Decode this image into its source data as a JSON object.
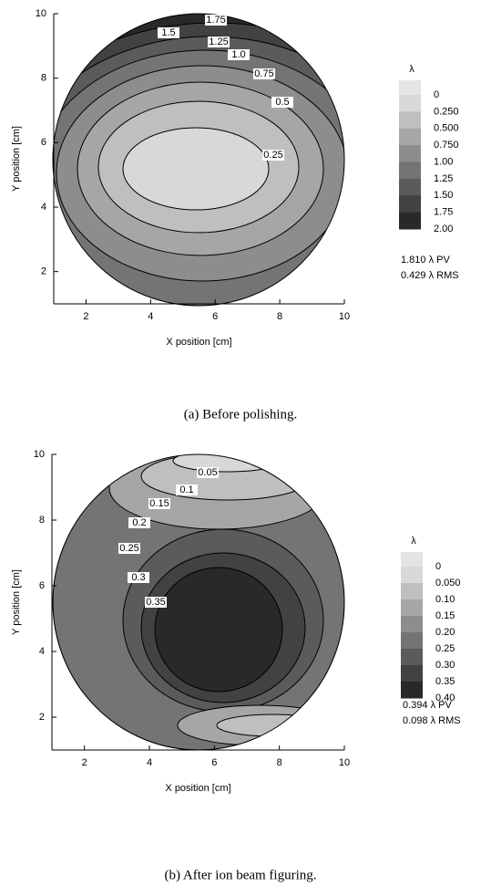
{
  "chart_data": [
    {
      "type": "contour",
      "caption": "(a) Before polishing.",
      "x_label": "X position [cm]",
      "y_label": "Y position [cm]",
      "xlim": [
        1,
        10
      ],
      "ylim": [
        1,
        10
      ],
      "xticks": [
        2,
        4,
        6,
        8,
        10
      ],
      "yticks": [
        2,
        4,
        6,
        8,
        10
      ],
      "levels": [
        1.75,
        1.5,
        1.25,
        {
          "value": 1,
          "label": "1.0"
        },
        0.75,
        0.5,
        0.25
      ],
      "colorbar_label": "λ",
      "clim": [
        0,
        2
      ],
      "colorbar_ticks": [
        0,
        {
          "value": 0.25,
          "label": "0.250"
        },
        {
          "value": 0.5,
          "label": "0.500"
        },
        {
          "value": 0.75,
          "label": "0.750"
        },
        {
          "value": 1,
          "label": "1.00"
        },
        1.25,
        {
          "value": 1.5,
          "label": "1.50"
        },
        1.75,
        {
          "value": 2,
          "label": "2.00"
        }
      ],
      "annotations": [
        "1.810 λ PV",
        "0.429 λ RMS"
      ]
    },
    {
      "type": "contour",
      "caption": "(b) After ion beam figuring.",
      "x_label": "X position [cm]",
      "y_label": "Y position [cm]",
      "xlim": [
        1,
        10
      ],
      "ylim": [
        1,
        10
      ],
      "xticks": [
        2,
        4,
        6,
        8,
        10
      ],
      "yticks": [
        2,
        4,
        6,
        8,
        10
      ],
      "levels": [
        0.05,
        0.1,
        0.15,
        0.2,
        0.25,
        0.3,
        0.35
      ],
      "colorbar_label": "λ",
      "clim": [
        0,
        0.4
      ],
      "colorbar_ticks": [
        0,
        {
          "value": 0.05,
          "label": "0.050"
        },
        {
          "value": 0.1,
          "label": "0.10"
        },
        0.15,
        {
          "value": 0.2,
          "label": "0.20"
        },
        0.25,
        {
          "value": 0.3,
          "label": "0.30"
        },
        0.35,
        {
          "value": 0.4,
          "label": "0.40"
        }
      ],
      "annotations": [
        "0.394 λ PV",
        "0.098 λ RMS"
      ]
    }
  ]
}
